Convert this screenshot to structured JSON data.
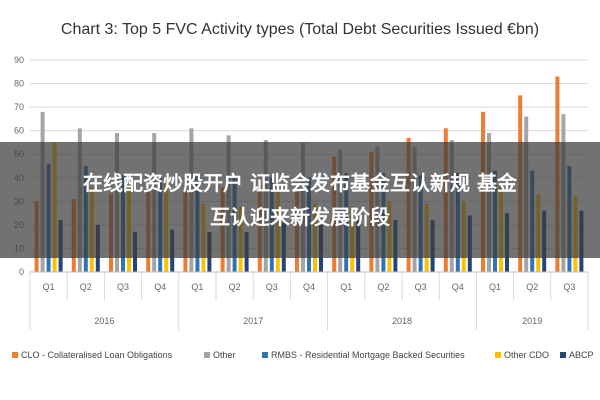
{
  "chart_data": {
    "type": "bar",
    "title": "Chart 3: Top 5 FVC Activity types (Total Debt Securities Issued €bn)",
    "categories": [
      "Q1",
      "Q2",
      "Q3",
      "Q4",
      "Q1",
      "Q2",
      "Q3",
      "Q4",
      "Q1",
      "Q2",
      "Q3",
      "Q4",
      "Q1",
      "Q2",
      "Q3"
    ],
    "years": [
      {
        "label": "2016",
        "start": 0,
        "end": 3
      },
      {
        "label": "2017",
        "start": 4,
        "end": 7
      },
      {
        "label": "2018",
        "start": 8,
        "end": 11
      },
      {
        "label": "2019",
        "start": 12,
        "end": 14
      }
    ],
    "ylim": [
      0,
      90
    ],
    "yticks": [
      0,
      10,
      20,
      30,
      40,
      50,
      60,
      70,
      80,
      90
    ],
    "grid": true,
    "legend_position": "bottom",
    "series": [
      {
        "name": "CLO - Collateralised Loan Obligations",
        "color": "#ed7d31",
        "values": [
          30,
          31,
          33,
          34,
          35,
          36,
          37,
          38,
          49,
          51,
          57,
          61,
          68,
          75,
          83
        ]
      },
      {
        "name": "Other",
        "color": "#a5a5a5",
        "values": [
          68,
          61,
          59,
          59,
          61,
          58,
          56,
          55,
          52,
          53,
          53,
          56,
          59,
          66,
          67
        ]
      },
      {
        "name": "RMBS - Residential Mortgage Backed Securities",
        "color": "#2e75b6",
        "values": [
          46,
          45,
          41,
          40,
          41,
          40,
          40,
          40,
          42,
          42,
          41,
          42,
          43,
          43,
          45
        ]
      },
      {
        "name": "Other CDO",
        "color": "#ffc000",
        "values": [
          55,
          36,
          37,
          39,
          29,
          28,
          34,
          29,
          28,
          30,
          29,
          30,
          37,
          33,
          32
        ]
      },
      {
        "name": "ABCP",
        "color": "#264478",
        "values": [
          22,
          20,
          17,
          18,
          17,
          17,
          21,
          20,
          22,
          22,
          22,
          24,
          25,
          26,
          26
        ]
      }
    ]
  },
  "overlay": {
    "line1": "在线配资炒股开户 证监会发布基金互认新规 基金",
    "line2": "互认迎来新发展阶段"
  }
}
